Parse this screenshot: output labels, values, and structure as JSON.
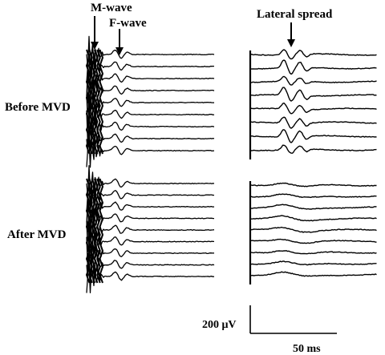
{
  "chart_data": {
    "type": "line",
    "description": "Electromyographic traces: facial nerve stimulation responses before and after microvascular decompression (MVD)",
    "colors": {
      "trace": "#000000",
      "background": "#ffffff"
    },
    "annotations": {
      "m_wave": "M-wave",
      "f_wave": "F-wave",
      "lateral_spread": "Lateral spread"
    },
    "row_labels": {
      "before": "Before MVD",
      "after": "After MVD"
    },
    "scale_bar": {
      "amplitude_label": "200 μV",
      "time_label": "50 ms",
      "amplitude_uV": 200,
      "time_ms": 50
    },
    "panels": [
      {
        "group": "before",
        "side": "left",
        "trace_count": 9,
        "m_wave": true,
        "f_wave": true,
        "lateral_spread": false
      },
      {
        "group": "before",
        "side": "right",
        "trace_count": 8,
        "m_wave": false,
        "f_wave": false,
        "lateral_spread": true
      },
      {
        "group": "after",
        "side": "left",
        "trace_count": 9,
        "m_wave": true,
        "f_wave": true,
        "lateral_spread": false
      },
      {
        "group": "after",
        "side": "right",
        "trace_count": 9,
        "m_wave": false,
        "f_wave": false,
        "lateral_spread": false
      }
    ]
  }
}
